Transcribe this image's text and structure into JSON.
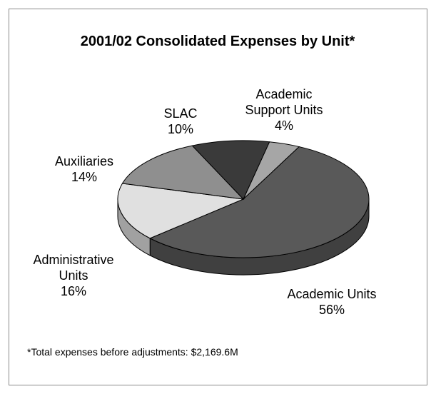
{
  "chart_data": {
    "type": "pie",
    "title": "2001/02 Consolidated Expenses by Unit*",
    "footnote": "*Total expenses before adjustments: $2,169.6M",
    "slices": [
      {
        "label_lines": [
          "Academic",
          "Support Units"
        ],
        "pct_label": "4%",
        "value": 4,
        "color": "#a6a6a6"
      },
      {
        "label_lines": [
          "Academic Units"
        ],
        "pct_label": "56%",
        "value": 56,
        "color": "#595959"
      },
      {
        "label_lines": [
          "Administrative",
          "Units"
        ],
        "pct_label": "16%",
        "value": 16,
        "color": "#e0e0e0"
      },
      {
        "label_lines": [
          "Auxiliaries"
        ],
        "pct_label": "14%",
        "value": 14,
        "color": "#8f8f8f"
      },
      {
        "label_lines": [
          "SLAC"
        ],
        "pct_label": "10%",
        "value": 10,
        "color": "#3a3a3a"
      }
    ],
    "style": "3d-pie"
  }
}
